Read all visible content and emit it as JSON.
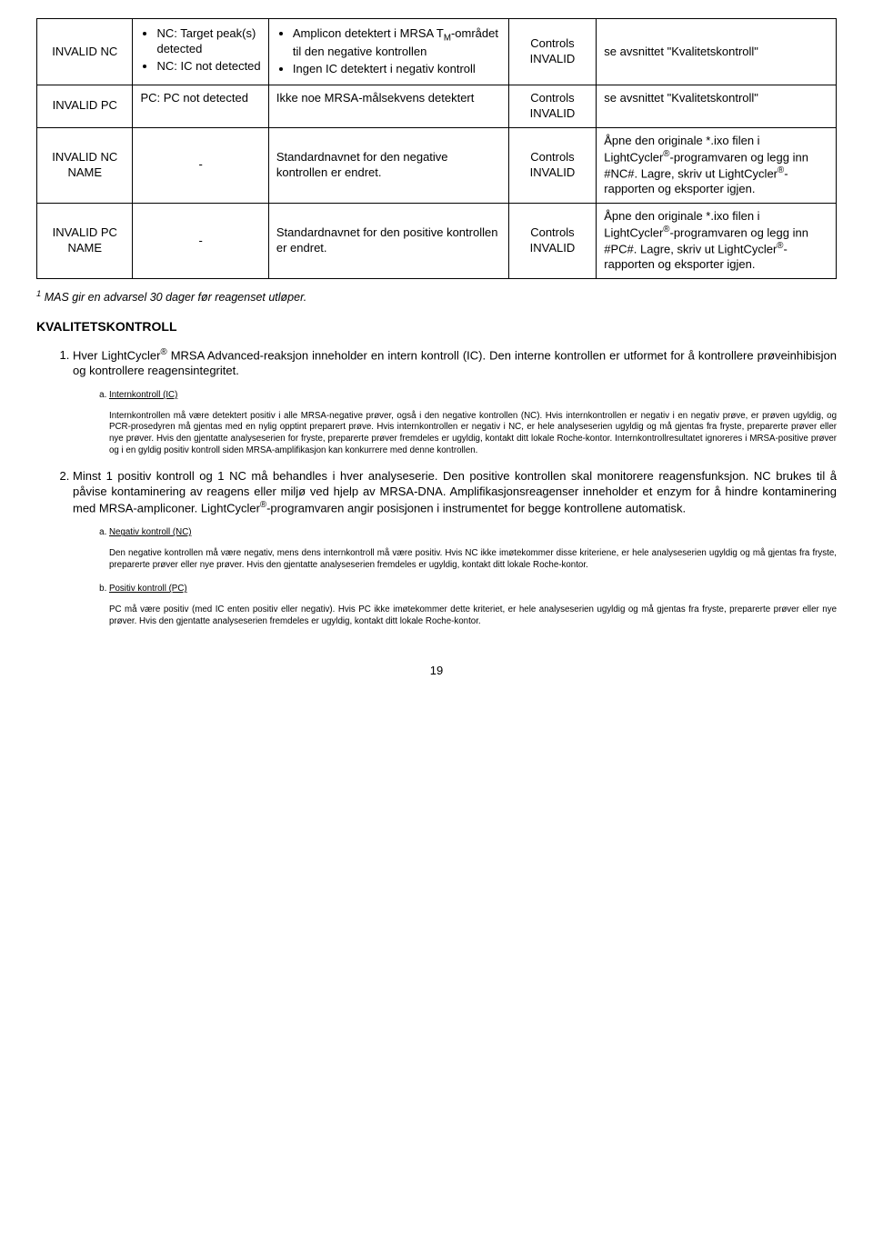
{
  "table": {
    "rows": [
      {
        "c1": "INVALID NC",
        "c2_bullets": [
          "NC: Target peak(s) detected",
          "NC: IC not detected"
        ],
        "c3_bullets": [
          "Amplicon detektert i MRSA T",
          "Ingen IC detektert i negativ kontroll"
        ],
        "c3_bullet0_sub": "M",
        "c3_bullet0_tail": "-området til den negative kontrollen",
        "c4": "Controls INVALID",
        "c5": "se avsnittet \"Kvalitetskontroll\""
      },
      {
        "c1": "INVALID PC",
        "c2_text": "PC: PC not detected",
        "c3_text": "Ikke noe MRSA-målsekvens detektert",
        "c4": "Controls INVALID",
        "c5": "se avsnittet \"Kvalitetskontroll\""
      },
      {
        "c1": "INVALID NC NAME",
        "c2_text": "-",
        "c3_text": "Standardnavnet for den negative kontrollen er endret.",
        "c4": "Controls INVALID",
        "c5_pre": "Åpne den originale *.ixo filen i LightCycler",
        "c5_mid": "-programvaren og legg inn #NC#. Lagre, skriv ut LightCycler",
        "c5_post": "-rapporten og eksporter igjen."
      },
      {
        "c1": "INVALID PC NAME",
        "c2_text": "-",
        "c3_text": "Standardnavnet for den positive kontrollen er endret.",
        "c4": "Controls INVALID",
        "c5_pre": "Åpne den originale *.ixo filen i LightCycler",
        "c5_mid": "-programvaren og legg inn #PC#. Lagre, skriv ut LightCycler",
        "c5_post": "-rapporten og eksporter igjen."
      }
    ]
  },
  "footnote_sup": "1",
  "footnote_text": " MAS gir en advarsel 30 dager før reagenset utløper.",
  "section_title": "KVALITETSKONTROLL",
  "p1_pre": "Hver LightCycler",
  "p1_post": " MRSA Advanced-reaksjon inneholder en intern kontroll (IC). Den interne kontrollen er utformet for å kontrollere prøveinhibisjon og kontrollere reagensintegritet.",
  "p1_sub_a_head": "Internkontroll (IC)",
  "p1_sub_a_body": "Internkontrollen må være detektert positiv i alle MRSA-negative prøver, også i den negative kontrollen (NC). Hvis internkontrollen er negativ i en negativ prøve, er prøven ugyldig, og PCR-prosedyren må gjentas med en nylig opptint preparert prøve. Hvis internkontrollen er negativ i NC, er hele analyseserien ugyldig og må gjentas fra fryste, preparerte prøver eller nye prøver. Hvis den gjentatte analyseserien for fryste, preparerte prøver fremdeles er ugyldig, kontakt ditt lokale Roche-kontor. Internkontrollresultatet ignoreres i MRSA-positive prøver og i en gyldig positiv kontroll siden MRSA-amplifikasjon kan konkurrere med denne kontrollen.",
  "p2_pre": "Minst 1 positiv kontroll og 1 NC må behandles i hver analyseserie. Den positive kontrollen skal monitorere reagensfunksjon. NC brukes til å påvise kontaminering av reagens eller miljø ved hjelp av MRSA-DNA. Amplifikasjonsreagenser inneholder et enzym for å hindre kontaminering med MRSA-ampliconer. LightCycler",
  "p2_post": "-programvaren angir posisjonen i instrumentet for begge kontrollene automatisk.",
  "p2_sub_a_head": "Negativ kontroll (NC)",
  "p2_sub_a_body": "Den negative kontrollen må være negativ, mens dens internkontroll må være positiv. Hvis NC ikke imøtekommer disse kriteriene, er hele analyseserien ugyldig og må gjentas fra fryste, preparerte prøver eller nye prøver. Hvis den gjentatte analyseserien fremdeles er ugyldig, kontakt ditt lokale Roche-kontor.",
  "p2_sub_b_head": "Positiv kontroll (PC)",
  "p2_sub_b_body": "PC må være positiv (med IC enten positiv eller negativ). Hvis PC ikke imøtekommer dette kriteriet, er hele analyseserien ugyldig og må gjentas fra fryste, preparerte prøver eller nye prøver. Hvis den gjentatte analyseserien fremdeles er ugyldig, kontakt ditt lokale Roche-kontor.",
  "reg_mark": "®",
  "page_number": "19"
}
